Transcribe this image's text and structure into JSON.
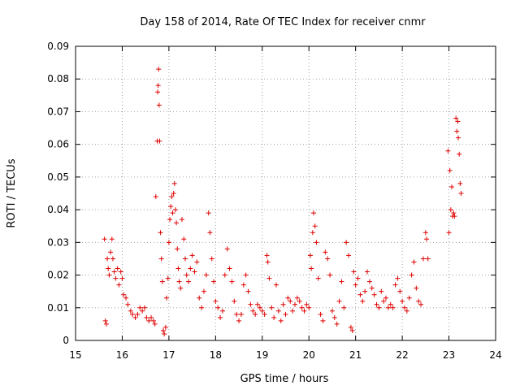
{
  "chart_data": {
    "type": "scatter",
    "title": "Day 158 of 2014, Rate Of TEC Index for receiver cnmr",
    "xlabel": "GPS time / hours",
    "ylabel": "ROTI / TECUs",
    "xlim": [
      15,
      24
    ],
    "ylim": [
      0,
      0.09
    ],
    "xticks": [
      "15",
      "16",
      "17",
      "18",
      "19",
      "20",
      "21",
      "22",
      "23",
      "24"
    ],
    "yticks": [
      "0",
      "0.01",
      "0.02",
      "0.03",
      "0.04",
      "0.05",
      "0.06",
      "0.07",
      "0.08",
      "0.09"
    ],
    "grid": true,
    "marker": "+",
    "color": "#e00000",
    "series": [
      {
        "name": "ROTI",
        "points": [
          [
            15.62,
            0.031
          ],
          [
            15.64,
            0.006
          ],
          [
            15.66,
            0.005
          ],
          [
            15.68,
            0.025
          ],
          [
            15.7,
            0.022
          ],
          [
            15.72,
            0.02
          ],
          [
            15.75,
            0.027
          ],
          [
            15.78,
            0.031
          ],
          [
            15.8,
            0.025
          ],
          [
            15.83,
            0.021
          ],
          [
            15.86,
            0.019
          ],
          [
            15.9,
            0.022
          ],
          [
            15.93,
            0.017
          ],
          [
            15.97,
            0.021
          ],
          [
            16.0,
            0.019
          ],
          [
            16.03,
            0.014
          ],
          [
            16.08,
            0.013
          ],
          [
            16.12,
            0.011
          ],
          [
            16.18,
            0.009
          ],
          [
            16.22,
            0.008
          ],
          [
            16.28,
            0.007
          ],
          [
            16.33,
            0.008
          ],
          [
            16.38,
            0.01
          ],
          [
            16.43,
            0.009
          ],
          [
            16.48,
            0.01
          ],
          [
            16.52,
            0.007
          ],
          [
            16.57,
            0.006
          ],
          [
            16.62,
            0.007
          ],
          [
            16.67,
            0.006
          ],
          [
            16.7,
            0.005
          ],
          [
            16.72,
            0.044
          ],
          [
            16.75,
            0.061
          ],
          [
            16.76,
            0.076
          ],
          [
            16.77,
            0.078
          ],
          [
            16.78,
            0.083
          ],
          [
            16.79,
            0.072
          ],
          [
            16.8,
            0.061
          ],
          [
            16.82,
            0.033
          ],
          [
            16.84,
            0.025
          ],
          [
            16.86,
            0.018
          ],
          [
            16.88,
            0.003
          ],
          [
            16.9,
            0.002
          ],
          [
            16.93,
            0.004
          ],
          [
            16.95,
            0.013
          ],
          [
            16.98,
            0.019
          ],
          [
            17.0,
            0.03
          ],
          [
            17.02,
            0.037
          ],
          [
            17.04,
            0.041
          ],
          [
            17.06,
            0.044
          ],
          [
            17.08,
            0.039
          ],
          [
            17.1,
            0.045
          ],
          [
            17.12,
            0.048
          ],
          [
            17.14,
            0.04
          ],
          [
            17.16,
            0.036
          ],
          [
            17.18,
            0.028
          ],
          [
            17.2,
            0.022
          ],
          [
            17.22,
            0.018
          ],
          [
            17.25,
            0.016
          ],
          [
            17.28,
            0.037
          ],
          [
            17.32,
            0.031
          ],
          [
            17.35,
            0.025
          ],
          [
            17.38,
            0.02
          ],
          [
            17.42,
            0.018
          ],
          [
            17.46,
            0.022
          ],
          [
            17.5,
            0.026
          ],
          [
            17.55,
            0.021
          ],
          [
            17.6,
            0.024
          ],
          [
            17.65,
            0.013
          ],
          [
            17.7,
            0.01
          ],
          [
            17.75,
            0.015
          ],
          [
            17.8,
            0.02
          ],
          [
            17.85,
            0.039
          ],
          [
            17.88,
            0.033
          ],
          [
            17.92,
            0.025
          ],
          [
            17.96,
            0.018
          ],
          [
            18.0,
            0.012
          ],
          [
            18.05,
            0.01
          ],
          [
            18.1,
            0.007
          ],
          [
            18.15,
            0.009
          ],
          [
            18.2,
            0.02
          ],
          [
            18.25,
            0.028
          ],
          [
            18.3,
            0.022
          ],
          [
            18.35,
            0.018
          ],
          [
            18.4,
            0.012
          ],
          [
            18.45,
            0.008
          ],
          [
            18.5,
            0.006
          ],
          [
            18.55,
            0.008
          ],
          [
            18.6,
            0.017
          ],
          [
            18.65,
            0.02
          ],
          [
            18.7,
            0.015
          ],
          [
            18.75,
            0.011
          ],
          [
            18.8,
            0.009
          ],
          [
            18.85,
            0.008
          ],
          [
            18.9,
            0.011
          ],
          [
            18.95,
            0.01
          ],
          [
            19.0,
            0.009
          ],
          [
            19.05,
            0.008
          ],
          [
            19.1,
            0.026
          ],
          [
            19.12,
            0.024
          ],
          [
            19.15,
            0.019
          ],
          [
            19.2,
            0.01
          ],
          [
            19.25,
            0.007
          ],
          [
            19.3,
            0.017
          ],
          [
            19.35,
            0.009
          ],
          [
            19.4,
            0.006
          ],
          [
            19.45,
            0.011
          ],
          [
            19.5,
            0.008
          ],
          [
            19.55,
            0.013
          ],
          [
            19.6,
            0.012
          ],
          [
            19.65,
            0.009
          ],
          [
            19.7,
            0.011
          ],
          [
            19.75,
            0.013
          ],
          [
            19.8,
            0.012
          ],
          [
            19.85,
            0.01
          ],
          [
            19.9,
            0.009
          ],
          [
            19.95,
            0.011
          ],
          [
            20.0,
            0.01
          ],
          [
            20.03,
            0.026
          ],
          [
            20.05,
            0.022
          ],
          [
            20.08,
            0.033
          ],
          [
            20.1,
            0.039
          ],
          [
            20.13,
            0.035
          ],
          [
            20.16,
            0.03
          ],
          [
            20.2,
            0.019
          ],
          [
            20.25,
            0.008
          ],
          [
            20.3,
            0.006
          ],
          [
            20.35,
            0.027
          ],
          [
            20.4,
            0.025
          ],
          [
            20.45,
            0.02
          ],
          [
            20.5,
            0.009
          ],
          [
            20.55,
            0.007
          ],
          [
            20.6,
            0.005
          ],
          [
            20.65,
            0.012
          ],
          [
            20.7,
            0.018
          ],
          [
            20.75,
            0.01
          ],
          [
            20.8,
            0.03
          ],
          [
            20.85,
            0.026
          ],
          [
            20.9,
            0.004
          ],
          [
            20.93,
            0.003
          ],
          [
            20.96,
            0.021
          ],
          [
            21.0,
            0.017
          ],
          [
            21.05,
            0.019
          ],
          [
            21.1,
            0.014
          ],
          [
            21.15,
            0.012
          ],
          [
            21.2,
            0.015
          ],
          [
            21.25,
            0.021
          ],
          [
            21.3,
            0.018
          ],
          [
            21.35,
            0.016
          ],
          [
            21.4,
            0.014
          ],
          [
            21.45,
            0.011
          ],
          [
            21.5,
            0.01
          ],
          [
            21.55,
            0.015
          ],
          [
            21.6,
            0.012
          ],
          [
            21.65,
            0.013
          ],
          [
            21.7,
            0.01
          ],
          [
            21.75,
            0.011
          ],
          [
            21.8,
            0.01
          ],
          [
            21.85,
            0.017
          ],
          [
            21.9,
            0.019
          ],
          [
            21.95,
            0.015
          ],
          [
            22.0,
            0.012
          ],
          [
            22.05,
            0.01
          ],
          [
            22.1,
            0.009
          ],
          [
            22.15,
            0.013
          ],
          [
            22.2,
            0.02
          ],
          [
            22.25,
            0.024
          ],
          [
            22.3,
            0.016
          ],
          [
            22.35,
            0.012
          ],
          [
            22.4,
            0.011
          ],
          [
            22.45,
            0.025
          ],
          [
            22.5,
            0.033
          ],
          [
            22.52,
            0.031
          ],
          [
            22.55,
            0.025
          ],
          [
            22.98,
            0.058
          ],
          [
            23.0,
            0.033
          ],
          [
            23.02,
            0.052
          ],
          [
            23.04,
            0.04
          ],
          [
            23.06,
            0.047
          ],
          [
            23.08,
            0.038
          ],
          [
            23.1,
            0.039
          ],
          [
            23.12,
            0.038
          ],
          [
            23.15,
            0.068
          ],
          [
            23.17,
            0.064
          ],
          [
            23.19,
            0.067
          ],
          [
            23.2,
            0.062
          ],
          [
            23.22,
            0.057
          ],
          [
            23.24,
            0.048
          ],
          [
            23.26,
            0.045
          ]
        ]
      }
    ]
  }
}
